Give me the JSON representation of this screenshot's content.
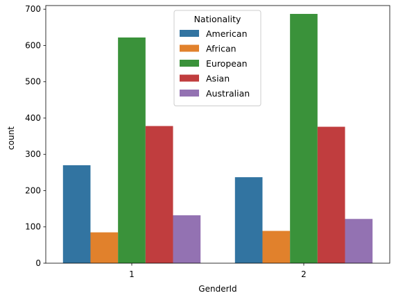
{
  "chart_data": {
    "type": "bar",
    "xlabel": "GenderId",
    "ylabel": "count",
    "categories": [
      "1",
      "2"
    ],
    "ylim": [
      0,
      710
    ],
    "yticks": [
      0,
      100,
      200,
      300,
      400,
      500,
      600,
      700
    ],
    "grid": false,
    "legend": {
      "title": "Nationality",
      "position": "top-center"
    },
    "series": [
      {
        "name": "American",
        "color": "#3274a1",
        "values": [
          270,
          237
        ]
      },
      {
        "name": "African",
        "color": "#e1812c",
        "values": [
          85,
          89
        ]
      },
      {
        "name": "European",
        "color": "#3a923a",
        "values": [
          622,
          687
        ]
      },
      {
        "name": "Asian",
        "color": "#c03d3e",
        "values": [
          378,
          376
        ]
      },
      {
        "name": "Australian",
        "color": "#9372b2",
        "values": [
          132,
          122
        ]
      }
    ]
  }
}
